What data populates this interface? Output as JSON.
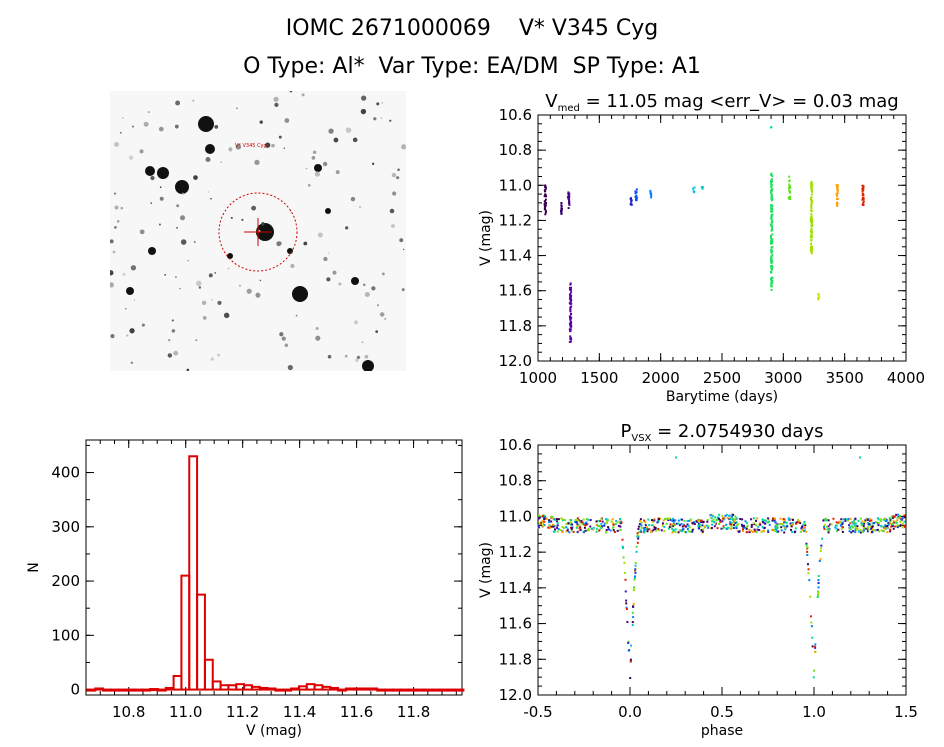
{
  "header": {
    "title": "IOMC 2671000069    V* V345 Cyg",
    "subtitle": "O Type: Al*  Var Type: EA/DM  SP Type: A1"
  },
  "sky_image": {
    "target_label": "V* V345 Cyg",
    "circle_color": "#d00000"
  },
  "chart_data": [
    {
      "id": "lightcurve",
      "type": "scatter",
      "title": "V",
      "title_sub": "med",
      "title_rest": " = 11.05 mag <err_V> = 0.03 mag",
      "xlabel": "Barytime (days)",
      "ylabel": "V (mag)",
      "xlim": [
        1000,
        4000
      ],
      "ylim": [
        12.0,
        10.6
      ],
      "y_inverted": true,
      "xticks": [
        "1000",
        "1500",
        "2000",
        "2500",
        "3000",
        "3500",
        "4000"
      ],
      "yticks": [
        "10.6",
        "10.8",
        "11.0",
        "11.2",
        "11.4",
        "11.6",
        "11.8",
        "12.0"
      ],
      "color_scale": "rainbow by time",
      "groups": [
        {
          "x": 1060,
          "y_min": 10.98,
          "y_max": 11.17,
          "color": "#3a0050"
        },
        {
          "x": 1190,
          "y_min": 11.1,
          "y_max": 11.17,
          "color": "#3a0070"
        },
        {
          "x": 1250,
          "y_min": 11.04,
          "y_max": 11.13,
          "color": "#4b0082"
        },
        {
          "x": 1265,
          "y_min": 11.55,
          "y_max": 11.9,
          "color": "#5a00a0"
        },
        {
          "x": 1760,
          "y_min": 11.07,
          "y_max": 11.12,
          "color": "#2020d0"
        },
        {
          "x": 1800,
          "y_min": 11.02,
          "y_max": 11.1,
          "color": "#0050ff"
        },
        {
          "x": 1920,
          "y_min": 11.03,
          "y_max": 11.07,
          "color": "#0080ff"
        },
        {
          "x": 2270,
          "y_min": 11.01,
          "y_max": 11.04,
          "color": "#00c0e0"
        },
        {
          "x": 2340,
          "y_min": 10.99,
          "y_max": 11.02,
          "color": "#00d0c0"
        },
        {
          "x": 2900,
          "y_min": 10.67,
          "y_max": 10.67,
          "color": "#00e080"
        },
        {
          "x": 2905,
          "y_min": 10.93,
          "y_max": 11.6,
          "color": "#20e060"
        },
        {
          "x": 3050,
          "y_min": 10.95,
          "y_max": 11.08,
          "color": "#60e020"
        },
        {
          "x": 3230,
          "y_min": 10.98,
          "y_max": 11.4,
          "color": "#a0e000"
        },
        {
          "x": 3290,
          "y_min": 11.62,
          "y_max": 11.66,
          "color": "#d0e000"
        },
        {
          "x": 3440,
          "y_min": 10.99,
          "y_max": 11.12,
          "color": "#ffa000"
        },
        {
          "x": 3650,
          "y_min": 11.0,
          "y_max": 11.12,
          "color": "#e02000"
        }
      ]
    },
    {
      "id": "histogram",
      "type": "bar",
      "xlabel": "V (mag)",
      "ylabel": "N",
      "xlim": [
        10.65,
        11.97
      ],
      "ylim": [
        -10,
        460
      ],
      "xticks": [
        "10.8",
        "11.0",
        "11.2",
        "11.4",
        "11.6",
        "11.8"
      ],
      "yticks": [
        "0",
        "100",
        "200",
        "300",
        "400"
      ],
      "bin_width": 0.0275,
      "bin_starts": [
        10.655,
        10.6825,
        10.71,
        10.7375,
        10.765,
        10.7925,
        10.82,
        10.8475,
        10.875,
        10.9025,
        10.93,
        10.9575,
        10.985,
        11.0125,
        11.04,
        11.0675,
        11.095,
        11.1225,
        11.15,
        11.1775,
        11.205,
        11.2325,
        11.26,
        11.2875,
        11.315,
        11.3425,
        11.37,
        11.3975,
        11.425,
        11.4525,
        11.48,
        11.5075,
        11.535,
        11.5625,
        11.59,
        11.6175,
        11.645,
        11.6725,
        11.7,
        11.7275,
        11.755,
        11.7825,
        11.81,
        11.8375,
        11.865,
        11.8925,
        11.92,
        11.9475
      ],
      "counts": [
        0,
        2,
        0,
        0,
        0,
        0,
        0,
        0,
        1,
        0,
        3,
        25,
        210,
        430,
        175,
        55,
        15,
        8,
        8,
        10,
        8,
        5,
        3,
        2,
        0,
        0,
        2,
        6,
        10,
        8,
        5,
        3,
        0,
        2,
        2,
        2,
        2,
        0,
        0,
        0,
        0,
        0,
        0,
        0,
        0,
        0,
        0,
        0
      ],
      "bar_color": "#dd0000"
    },
    {
      "id": "phased",
      "type": "scatter",
      "title": "P",
      "title_sub": "VSX",
      "title_rest": " = 2.0754930 days",
      "xlabel": "phase",
      "ylabel": "V (mag)",
      "xlim": [
        -0.5,
        1.5
      ],
      "ylim": [
        12.0,
        10.6
      ],
      "y_inverted": true,
      "xticks": [
        "-0.5",
        "0.0",
        "0.5",
        "1.0",
        "1.5"
      ],
      "yticks": [
        "10.6",
        "10.8",
        "11.0",
        "11.2",
        "11.4",
        "11.6",
        "11.8",
        "12.0"
      ],
      "period_days": 2.075493,
      "eclipse_phase": 0.0,
      "baseline_mag": 11.05,
      "min_depth_mag": 11.9
    }
  ]
}
